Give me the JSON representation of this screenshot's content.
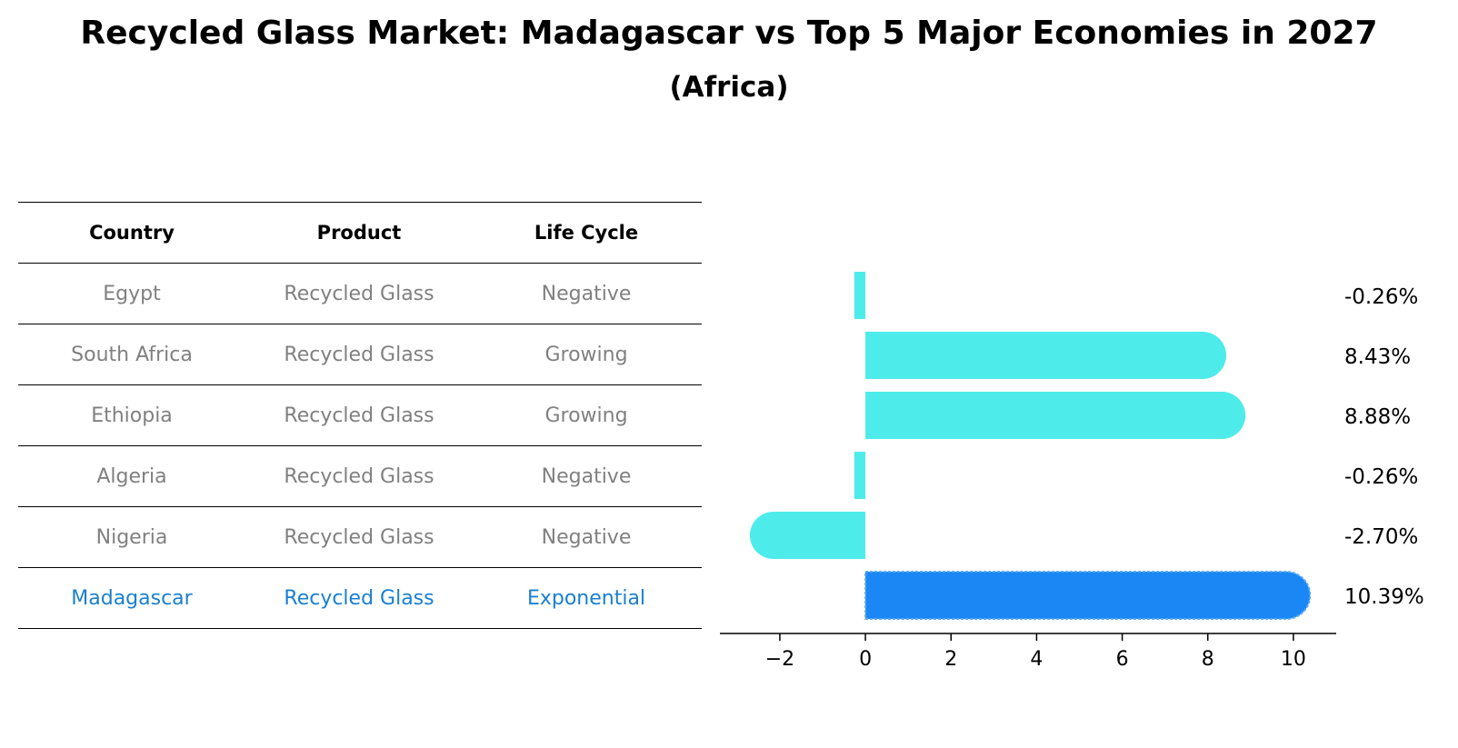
{
  "title": "Recycled Glass Market: Madagascar vs Top 5 Major Economies in 2027",
  "subtitle": "(Africa)",
  "colors": {
    "bar": "#4eebeb",
    "highlight": "#1a87f5",
    "table_text": "#808080",
    "highlight_text": "#1a7fd0"
  },
  "table": {
    "headers": [
      "Country",
      "Product",
      "Life Cycle"
    ],
    "rows": [
      [
        "Egypt",
        "Recycled Glass",
        "Negative"
      ],
      [
        "South Africa",
        "Recycled Glass",
        "Growing"
      ],
      [
        "Ethiopia",
        "Recycled Glass",
        "Growing"
      ],
      [
        "Algeria",
        "Recycled Glass",
        "Negative"
      ],
      [
        "Nigeria",
        "Recycled Glass",
        "Negative"
      ],
      [
        "Madagascar",
        "Recycled Glass",
        "Exponential"
      ]
    ]
  },
  "chart_data": {
    "type": "bar",
    "orientation": "horizontal",
    "categories": [
      "Egypt",
      "South Africa",
      "Ethiopia",
      "Algeria",
      "Nigeria",
      "Madagascar"
    ],
    "values": [
      -0.26,
      8.43,
      8.88,
      -0.26,
      -2.7,
      10.39
    ],
    "labels": [
      "-0.26%",
      "8.43%",
      "8.88%",
      "-0.26%",
      "-2.70%",
      "10.39%"
    ],
    "highlight_index": 5,
    "xlim": [
      -3.4,
      11.0
    ],
    "xticks": [
      -2,
      0,
      2,
      4,
      6,
      8,
      10
    ],
    "xtick_labels": [
      "−2",
      "0",
      "2",
      "4",
      "6",
      "8",
      "10"
    ],
    "xlabel": "",
    "ylabel": ""
  }
}
